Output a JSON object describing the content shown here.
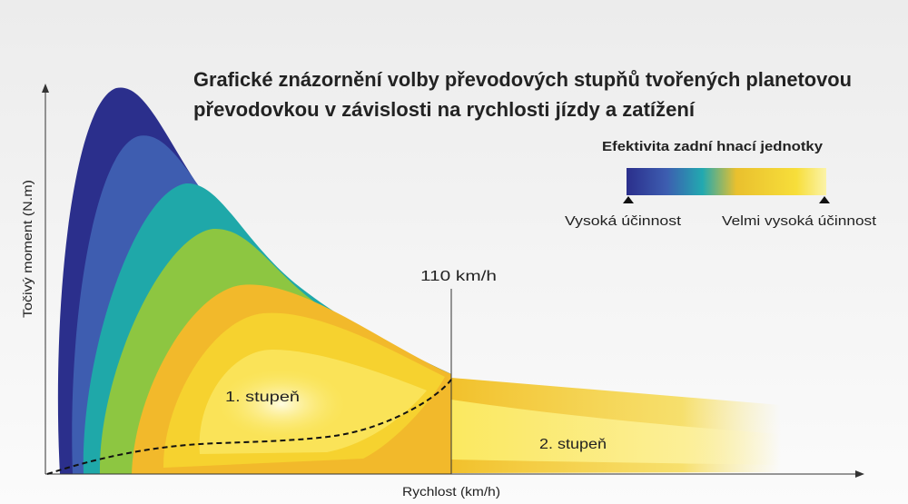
{
  "header": {
    "title_lines": [
      "Grafické znázornění volby převodových stupňů tvořených planetovou",
      "převodovkou v závislosti na rychlosti jízdy a zatížení"
    ]
  },
  "legend": {
    "title": "Efektivita zadní hnací jednotky",
    "low": "Vysoká účinnost",
    "high": "Velmi vysoká účinnost"
  },
  "axes": {
    "x_label": "Rychlost (km/h)",
    "y_label": "Točivý moment (N.m)"
  },
  "marker": {
    "label": "110 km/h"
  },
  "regions": [
    {
      "label": "1. stupeň"
    },
    {
      "label": "2. stupeň"
    }
  ]
}
